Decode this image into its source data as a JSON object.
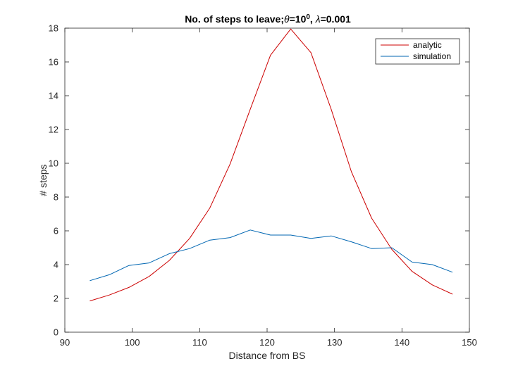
{
  "chart_data": {
    "type": "line",
    "title": {
      "text": "No. of steps to leave;",
      "theta_symbol": "θ",
      "theta_eq": "=10",
      "theta_sup": "0",
      "sep": ", ",
      "lambda_symbol": "λ",
      "lambda_eq": "=0.001"
    },
    "xlabel": "Distance from BS",
    "ylabel": "# steps",
    "xlim": [
      90,
      150
    ],
    "ylim": [
      0,
      18
    ],
    "xticks": [
      90,
      100,
      110,
      120,
      130,
      140,
      150
    ],
    "yticks": [
      0,
      2,
      4,
      6,
      8,
      10,
      12,
      14,
      16,
      18
    ],
    "grid": false,
    "legend_position": "top-right",
    "x": [
      93.7,
      96.6,
      99.5,
      102.5,
      105.5,
      108.5,
      111.5,
      114.5,
      117.5,
      120.5,
      123.5,
      126.5,
      129.5,
      132.5,
      135.5,
      138.5,
      141.5,
      144.5,
      147.5
    ],
    "series": [
      {
        "name": "analytic",
        "color": "#cc0000",
        "values": [
          1.85,
          2.2,
          2.65,
          3.3,
          4.25,
          5.55,
          7.35,
          9.95,
          13.2,
          16.4,
          17.95,
          16.55,
          13.2,
          9.5,
          6.75,
          4.9,
          3.6,
          2.8,
          2.25
        ]
      },
      {
        "name": "simulation",
        "color": "#0066b2",
        "values": [
          3.05,
          3.4,
          3.95,
          4.1,
          4.65,
          4.95,
          5.45,
          5.6,
          6.05,
          5.75,
          5.75,
          5.55,
          5.7,
          5.35,
          4.95,
          5.0,
          4.15,
          4.0,
          3.55
        ]
      }
    ]
  }
}
